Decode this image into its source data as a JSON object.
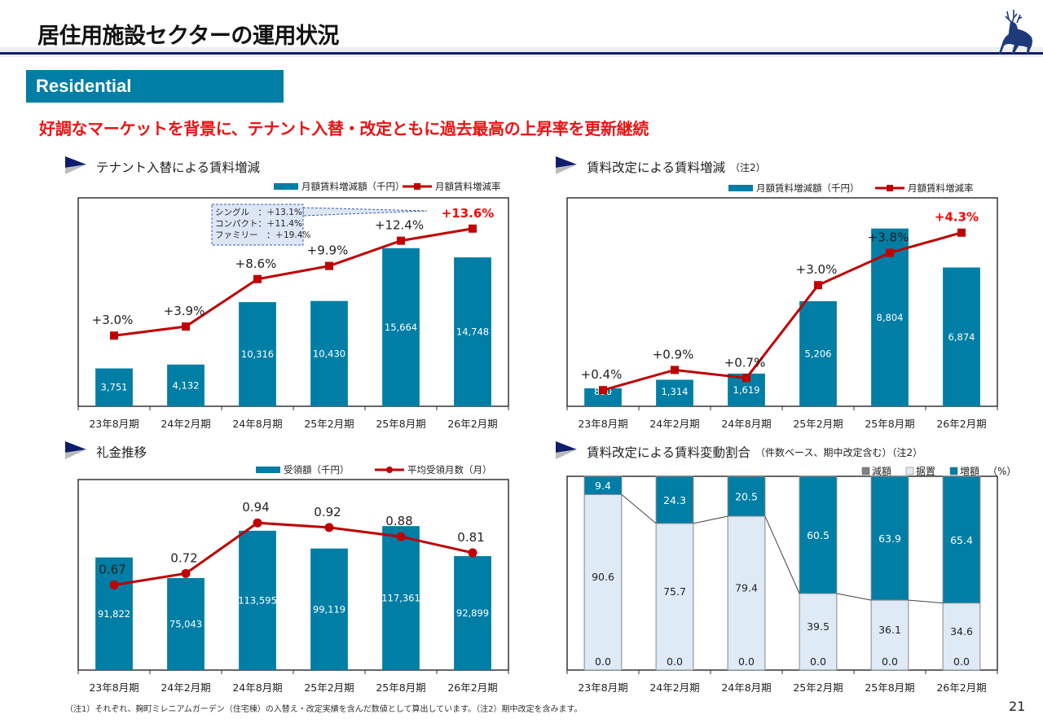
{
  "header": {
    "title": "居住用施設セクターの運用状況",
    "section_tag": "Residential",
    "headline": "好調なマーケットを背景に、テナント入替・改定ともに過去最高の上昇率を更新継続",
    "logo_icon": "deer-icon"
  },
  "colors": {
    "bar": "#007ea5",
    "line": "#c00000",
    "highlight": "#ff0000",
    "flat": "#deeaf6",
    "decrease": "#808080",
    "title_rule": "#0d1e6e",
    "headline": "#ee1111"
  },
  "chart_data": [
    {
      "id": "tenant-turnover",
      "type": "bar+line",
      "title": "テナント入替による賃料増減",
      "note": "",
      "categories": [
        "23年8月期",
        "24年2月期",
        "24年8月期",
        "25年2月期",
        "25年8月期",
        "26年2月期"
      ],
      "legend": [
        "月額賃料増減額（千円）",
        "月額賃料増減率"
      ],
      "series": [
        {
          "name": "月額賃料増減額（千円）",
          "kind": "bar",
          "values": [
            3751,
            4132,
            10316,
            10430,
            15664,
            14748
          ],
          "labels": [
            "3,751",
            "4,132",
            "10,316",
            "10,430",
            "15,664",
            "14,748"
          ]
        },
        {
          "name": "月額賃料増減率",
          "kind": "line",
          "marker": "square",
          "values": [
            3.0,
            3.9,
            8.6,
            9.9,
            12.4,
            13.6
          ],
          "labels": [
            "+3.0%",
            "+3.9%",
            "+8.6%",
            "+9.9%",
            "+12.4%",
            "+13.6%"
          ],
          "highlight_last": true
        }
      ],
      "callout": [
        "シングル　：＋13.1%",
        "コンパクト：＋11.4%",
        "ファミリー　：＋19.4%"
      ],
      "bar_ylim": [
        0,
        20000
      ],
      "line_ylim": [
        -4,
        16
      ]
    },
    {
      "id": "rent-revision",
      "type": "bar+line",
      "title": "賃料改定による賃料増減",
      "note": "（注2）",
      "categories": [
        "23年8月期",
        "24年2月期",
        "24年8月期",
        "25年2月期",
        "25年8月期",
        "26年2月期"
      ],
      "legend": [
        "月額賃料増減額（千円）",
        "月額賃料増減率"
      ],
      "series": [
        {
          "name": "月額賃料増減額（千円）",
          "kind": "bar",
          "values": [
            890,
            1314,
            1619,
            5206,
            8804,
            6874
          ],
          "labels": [
            "890",
            "1,314",
            "1,619",
            "5,206",
            "8,804",
            "6,874"
          ]
        },
        {
          "name": "月額賃料増減率",
          "kind": "line",
          "marker": "square",
          "values": [
            0.4,
            0.9,
            0.7,
            3.0,
            3.8,
            4.3
          ],
          "labels": [
            "+0.4%",
            "+0.9%",
            "+0.7%",
            "+3.0%",
            "+3.8%",
            "+4.3%"
          ],
          "highlight_last": true
        }
      ],
      "bar_ylim": [
        0,
        10000
      ],
      "line_ylim": [
        0,
        5
      ]
    },
    {
      "id": "key-money",
      "type": "bar+line",
      "title": "礼金推移",
      "note": "",
      "categories": [
        "23年8月期",
        "24年2月期",
        "24年8月期",
        "25年2月期",
        "25年8月期",
        "26年2月期"
      ],
      "legend": [
        "受領額（千円）",
        "平均受領月数（月）"
      ],
      "series": [
        {
          "name": "受領額（千円）",
          "kind": "bar",
          "values": [
            91822,
            75043,
            113595,
            99119,
            117361,
            92899
          ],
          "labels": [
            "91,822",
            "75,043",
            "113,595",
            "99,119",
            "117,361",
            "92,899"
          ]
        },
        {
          "name": "平均受領月数（月）",
          "kind": "line",
          "marker": "circle",
          "values": [
            0.67,
            0.72,
            0.94,
            0.92,
            0.88,
            0.81
          ],
          "labels": [
            "0.67",
            "0.72",
            "0.94",
            "0.92",
            "0.88",
            "0.81"
          ],
          "highlight_last": false
        }
      ],
      "bar_ylim": [
        0,
        150000
      ],
      "line_ylim": [
        0.3,
        1.1
      ]
    },
    {
      "id": "revision-ratio",
      "type": "stacked-bar",
      "title": "賃料改定による賃料変動割合",
      "note": "（件数ベース、期中改定含む）（注2）",
      "categories": [
        "23年8月期",
        "24年2月期",
        "24年8月期",
        "25年2月期",
        "25年8月期",
        "26年2月期"
      ],
      "legend": [
        "減額",
        "据置",
        "増額"
      ],
      "unit": "（%）",
      "series": [
        {
          "name": "減額",
          "values": [
            0.0,
            0.0,
            0.0,
            0.0,
            0.0,
            0.0
          ],
          "labels": [
            "0.0",
            "0.0",
            "0.0",
            "0.0",
            "0.0",
            "0.0"
          ]
        },
        {
          "name": "据置",
          "values": [
            90.6,
            75.7,
            79.4,
            39.5,
            36.1,
            34.6
          ],
          "labels": [
            "90.6",
            "75.7",
            "79.4",
            "39.5",
            "36.1",
            "34.6"
          ]
        },
        {
          "name": "増額",
          "values": [
            9.4,
            24.3,
            20.5,
            60.5,
            63.9,
            65.4
          ],
          "labels": [
            "9.4",
            "24.3",
            "20.5",
            "60.5",
            "63.9",
            "65.4"
          ]
        }
      ],
      "ylim": [
        0,
        100
      ]
    }
  ],
  "footer": {
    "note": "（注1）それぞれ、麹町ミレニアムガーデン（住宅棟）の入替え・改定実績を含んだ数値として算出しています。（注2）期中改定を含みます。",
    "page_number": "21"
  }
}
